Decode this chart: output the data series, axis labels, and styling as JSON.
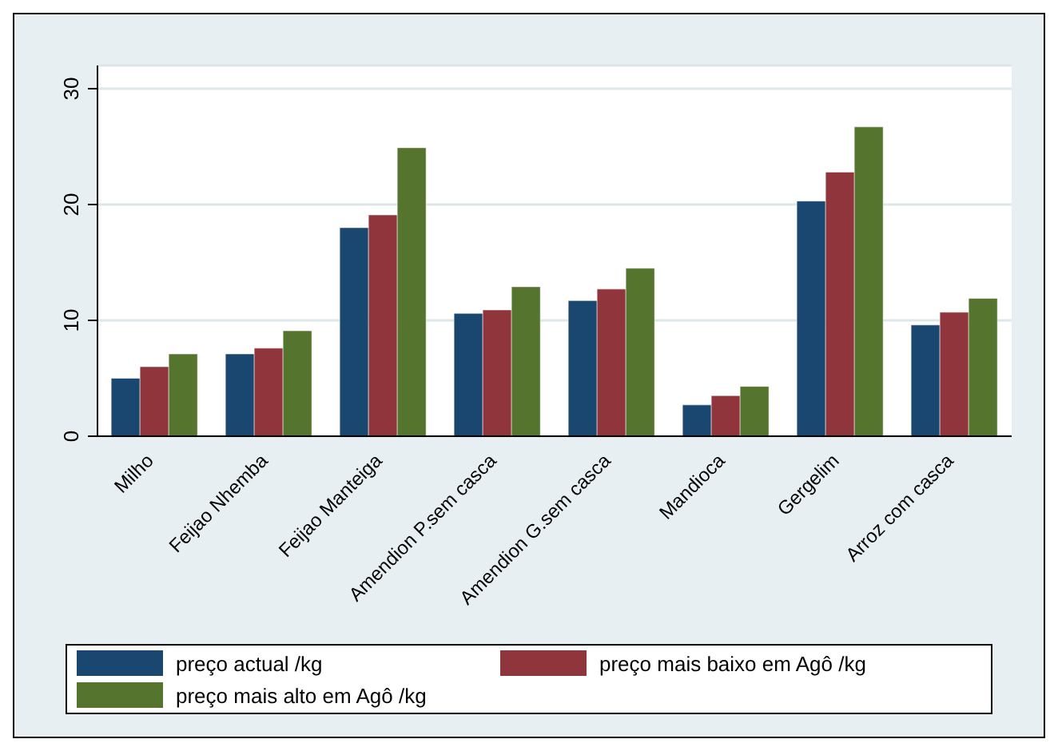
{
  "chart_data": {
    "type": "bar",
    "categories": [
      "Milho",
      "Feijao Nhemba",
      "Feijao Manteiga",
      "Amendion P.sem casca",
      "Amendion G.sem casca",
      "Mandioca",
      "Gergelim",
      "Arroz com casca"
    ],
    "series": [
      {
        "name": "preço actual /kg",
        "color": "#1a476f",
        "values": [
          5,
          7.1,
          18,
          10.6,
          11.7,
          2.7,
          20.3,
          9.6
        ]
      },
      {
        "name": "preço mais baixo em Agô /kg",
        "color": "#90353b",
        "values": [
          6,
          7.6,
          19.1,
          10.9,
          12.7,
          3.5,
          22.8,
          10.7
        ]
      },
      {
        "name": "preço mais alto em Agô /kg",
        "color": "#55752f",
        "values": [
          7.1,
          9.1,
          24.9,
          12.9,
          14.5,
          4.3,
          26.7,
          11.9
        ]
      }
    ],
    "ylim": [
      0,
      32
    ],
    "yticks": [
      0,
      10,
      20,
      30
    ],
    "grid": "y",
    "legend": "bottom"
  }
}
